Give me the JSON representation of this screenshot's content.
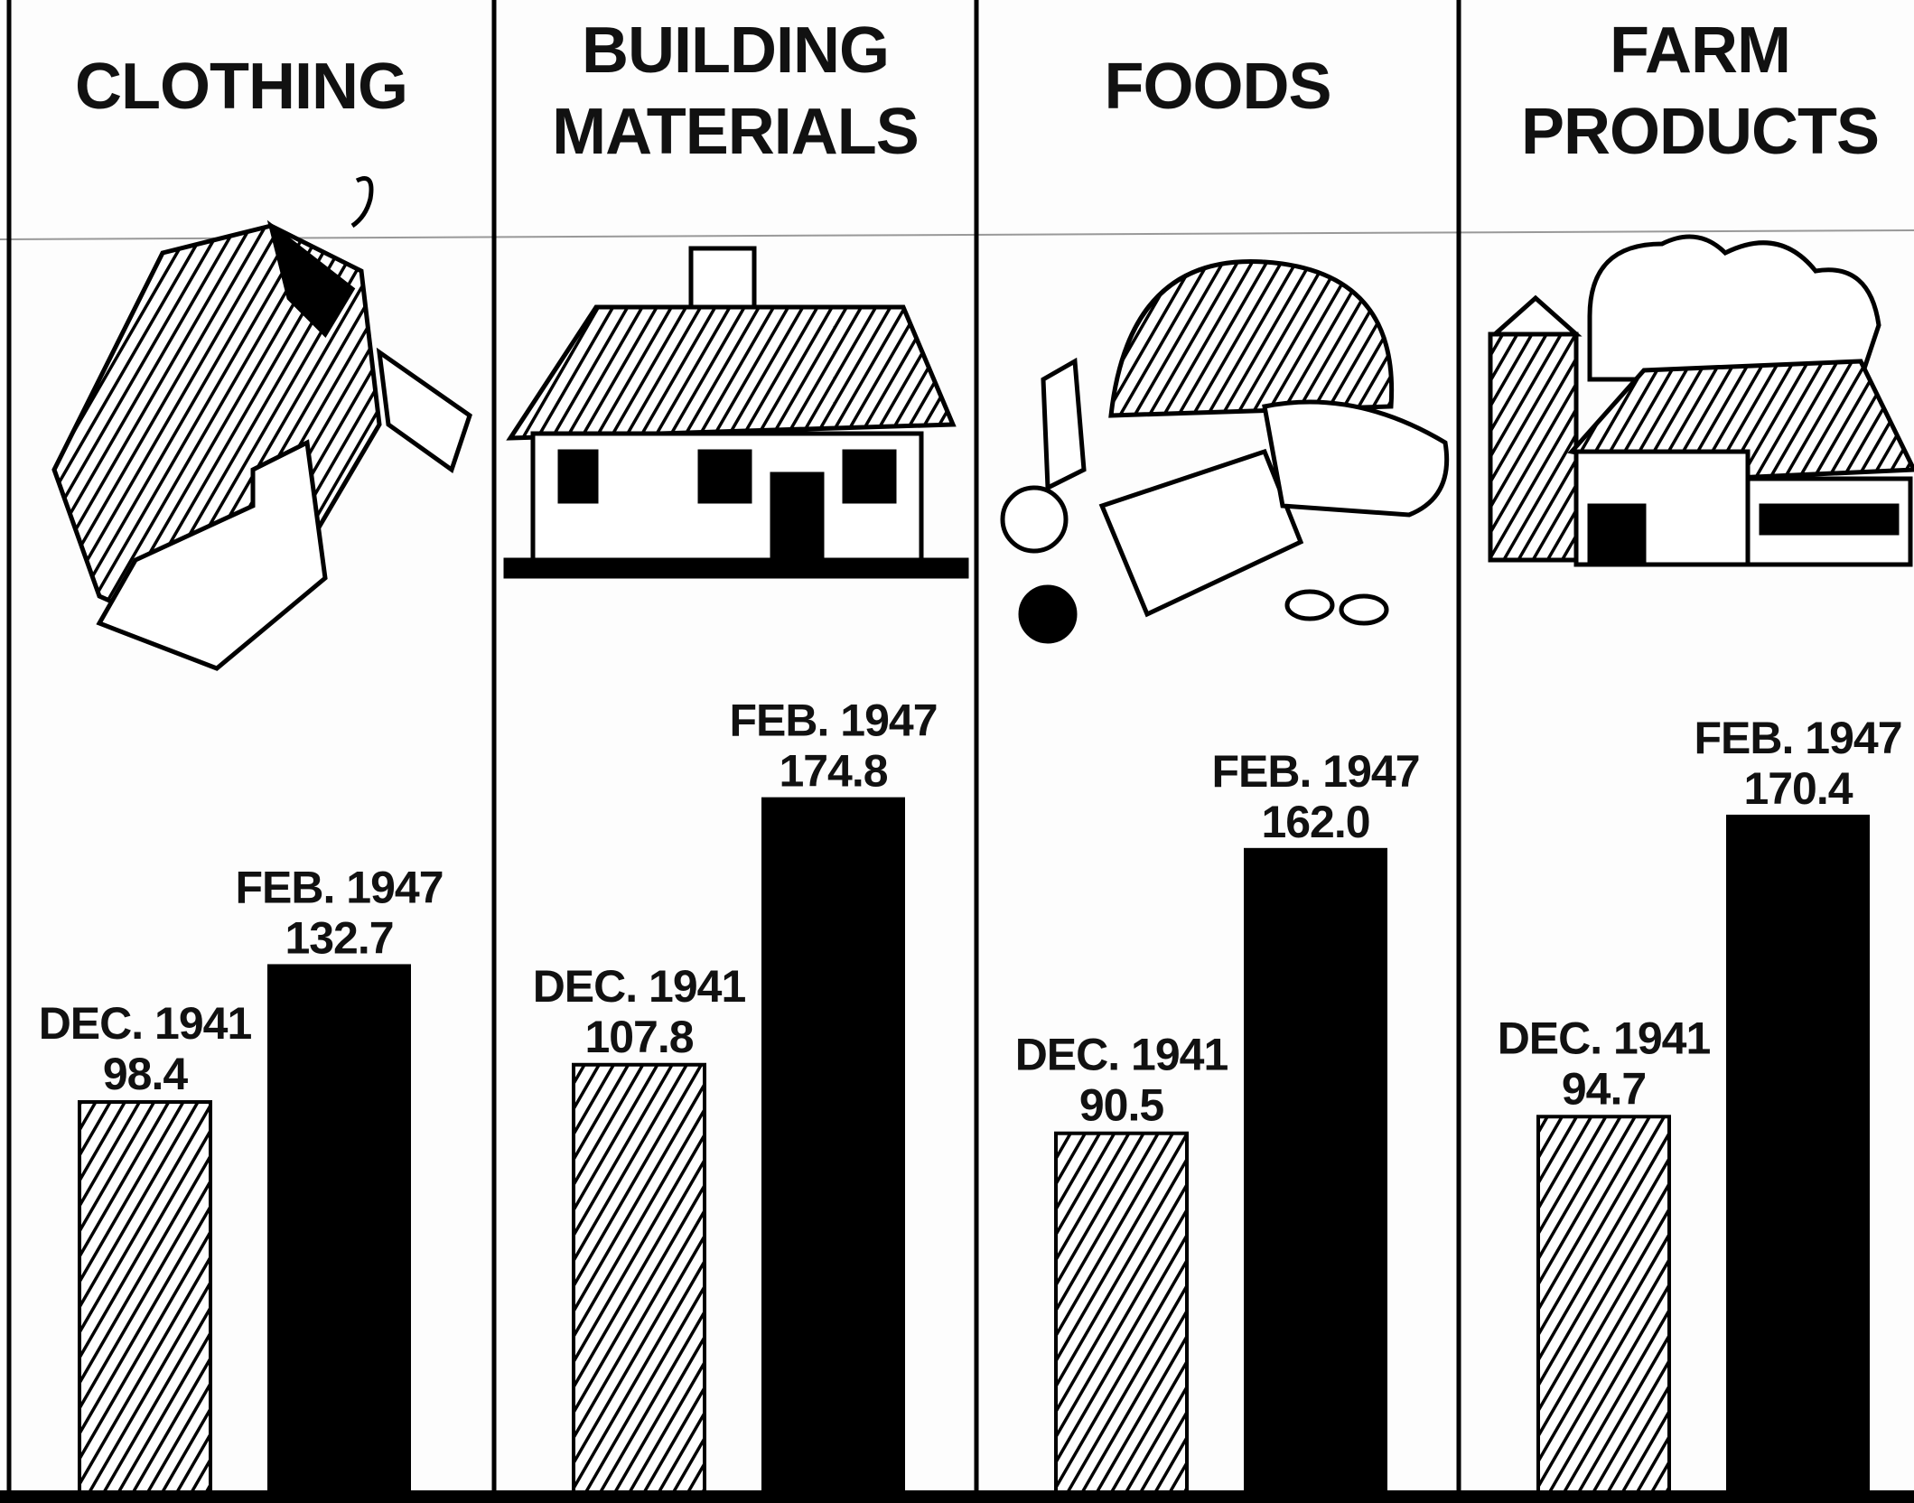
{
  "chart_data": [
    {
      "type": "bar",
      "title": [
        "CLOTHING"
      ],
      "categories": [
        "DEC. 1941",
        "FEB. 1947"
      ],
      "values": [
        98.4,
        132.7
      ],
      "value_labels": [
        "98.4",
        "132.7"
      ],
      "ylim": [
        0,
        200
      ]
    },
    {
      "type": "bar",
      "title": [
        "BUILDING",
        "MATERIALS"
      ],
      "categories": [
        "DEC. 1941",
        "FEB. 1947"
      ],
      "values": [
        107.8,
        174.8
      ],
      "value_labels": [
        "107.8",
        "174.8"
      ],
      "ylim": [
        0,
        200
      ]
    },
    {
      "type": "bar",
      "title": [
        "FOODS"
      ],
      "categories": [
        "DEC. 1941",
        "FEB. 1947"
      ],
      "values": [
        90.5,
        162.0
      ],
      "value_labels": [
        "90.5",
        "162.0"
      ],
      "ylim": [
        0,
        200
      ]
    },
    {
      "type": "bar",
      "title": [
        "FARM",
        "PRODUCTS"
      ],
      "categories": [
        "DEC. 1941",
        "FEB. 1947"
      ],
      "values": [
        94.7,
        170.4
      ],
      "value_labels": [
        "94.7",
        "170.4"
      ],
      "ylim": [
        0,
        200
      ]
    }
  ]
}
